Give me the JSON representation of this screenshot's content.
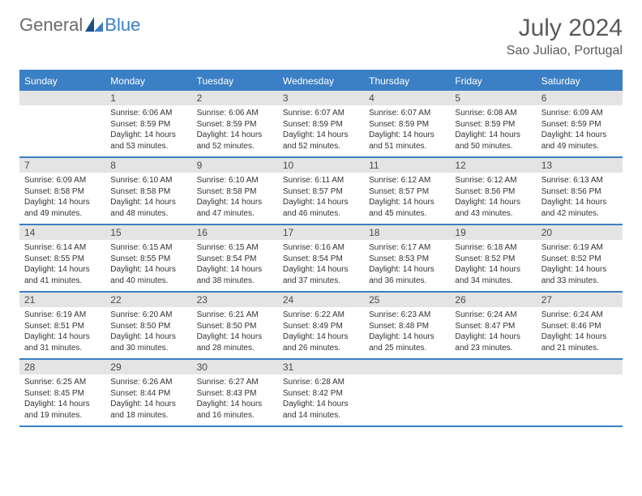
{
  "brand": {
    "part1": "General",
    "part2": "Blue"
  },
  "title": "July 2024",
  "location": "Sao Juliao, Portugal",
  "colors": {
    "accent": "#3b7fc4",
    "header_bg": "#3b7fc4",
    "daynum_bg": "#e4e4e4",
    "text": "#333333",
    "title_text": "#5a5a5a",
    "background": "#ffffff"
  },
  "weekdays": [
    "Sunday",
    "Monday",
    "Tuesday",
    "Wednesday",
    "Thursday",
    "Friday",
    "Saturday"
  ],
  "weeks": [
    [
      {
        "day": "",
        "lines": [
          "",
          "",
          "",
          ""
        ]
      },
      {
        "day": "1",
        "lines": [
          "Sunrise: 6:06 AM",
          "Sunset: 8:59 PM",
          "Daylight: 14 hours",
          "and 53 minutes."
        ]
      },
      {
        "day": "2",
        "lines": [
          "Sunrise: 6:06 AM",
          "Sunset: 8:59 PM",
          "Daylight: 14 hours",
          "and 52 minutes."
        ]
      },
      {
        "day": "3",
        "lines": [
          "Sunrise: 6:07 AM",
          "Sunset: 8:59 PM",
          "Daylight: 14 hours",
          "and 52 minutes."
        ]
      },
      {
        "day": "4",
        "lines": [
          "Sunrise: 6:07 AM",
          "Sunset: 8:59 PM",
          "Daylight: 14 hours",
          "and 51 minutes."
        ]
      },
      {
        "day": "5",
        "lines": [
          "Sunrise: 6:08 AM",
          "Sunset: 8:59 PM",
          "Daylight: 14 hours",
          "and 50 minutes."
        ]
      },
      {
        "day": "6",
        "lines": [
          "Sunrise: 6:09 AM",
          "Sunset: 8:59 PM",
          "Daylight: 14 hours",
          "and 49 minutes."
        ]
      }
    ],
    [
      {
        "day": "7",
        "lines": [
          "Sunrise: 6:09 AM",
          "Sunset: 8:58 PM",
          "Daylight: 14 hours",
          "and 49 minutes."
        ]
      },
      {
        "day": "8",
        "lines": [
          "Sunrise: 6:10 AM",
          "Sunset: 8:58 PM",
          "Daylight: 14 hours",
          "and 48 minutes."
        ]
      },
      {
        "day": "9",
        "lines": [
          "Sunrise: 6:10 AM",
          "Sunset: 8:58 PM",
          "Daylight: 14 hours",
          "and 47 minutes."
        ]
      },
      {
        "day": "10",
        "lines": [
          "Sunrise: 6:11 AM",
          "Sunset: 8:57 PM",
          "Daylight: 14 hours",
          "and 46 minutes."
        ]
      },
      {
        "day": "11",
        "lines": [
          "Sunrise: 6:12 AM",
          "Sunset: 8:57 PM",
          "Daylight: 14 hours",
          "and 45 minutes."
        ]
      },
      {
        "day": "12",
        "lines": [
          "Sunrise: 6:12 AM",
          "Sunset: 8:56 PM",
          "Daylight: 14 hours",
          "and 43 minutes."
        ]
      },
      {
        "day": "13",
        "lines": [
          "Sunrise: 6:13 AM",
          "Sunset: 8:56 PM",
          "Daylight: 14 hours",
          "and 42 minutes."
        ]
      }
    ],
    [
      {
        "day": "14",
        "lines": [
          "Sunrise: 6:14 AM",
          "Sunset: 8:55 PM",
          "Daylight: 14 hours",
          "and 41 minutes."
        ]
      },
      {
        "day": "15",
        "lines": [
          "Sunrise: 6:15 AM",
          "Sunset: 8:55 PM",
          "Daylight: 14 hours",
          "and 40 minutes."
        ]
      },
      {
        "day": "16",
        "lines": [
          "Sunrise: 6:15 AM",
          "Sunset: 8:54 PM",
          "Daylight: 14 hours",
          "and 38 minutes."
        ]
      },
      {
        "day": "17",
        "lines": [
          "Sunrise: 6:16 AM",
          "Sunset: 8:54 PM",
          "Daylight: 14 hours",
          "and 37 minutes."
        ]
      },
      {
        "day": "18",
        "lines": [
          "Sunrise: 6:17 AM",
          "Sunset: 8:53 PM",
          "Daylight: 14 hours",
          "and 36 minutes."
        ]
      },
      {
        "day": "19",
        "lines": [
          "Sunrise: 6:18 AM",
          "Sunset: 8:52 PM",
          "Daylight: 14 hours",
          "and 34 minutes."
        ]
      },
      {
        "day": "20",
        "lines": [
          "Sunrise: 6:19 AM",
          "Sunset: 8:52 PM",
          "Daylight: 14 hours",
          "and 33 minutes."
        ]
      }
    ],
    [
      {
        "day": "21",
        "lines": [
          "Sunrise: 6:19 AM",
          "Sunset: 8:51 PM",
          "Daylight: 14 hours",
          "and 31 minutes."
        ]
      },
      {
        "day": "22",
        "lines": [
          "Sunrise: 6:20 AM",
          "Sunset: 8:50 PM",
          "Daylight: 14 hours",
          "and 30 minutes."
        ]
      },
      {
        "day": "23",
        "lines": [
          "Sunrise: 6:21 AM",
          "Sunset: 8:50 PM",
          "Daylight: 14 hours",
          "and 28 minutes."
        ]
      },
      {
        "day": "24",
        "lines": [
          "Sunrise: 6:22 AM",
          "Sunset: 8:49 PM",
          "Daylight: 14 hours",
          "and 26 minutes."
        ]
      },
      {
        "day": "25",
        "lines": [
          "Sunrise: 6:23 AM",
          "Sunset: 8:48 PM",
          "Daylight: 14 hours",
          "and 25 minutes."
        ]
      },
      {
        "day": "26",
        "lines": [
          "Sunrise: 6:24 AM",
          "Sunset: 8:47 PM",
          "Daylight: 14 hours",
          "and 23 minutes."
        ]
      },
      {
        "day": "27",
        "lines": [
          "Sunrise: 6:24 AM",
          "Sunset: 8:46 PM",
          "Daylight: 14 hours",
          "and 21 minutes."
        ]
      }
    ],
    [
      {
        "day": "28",
        "lines": [
          "Sunrise: 6:25 AM",
          "Sunset: 8:45 PM",
          "Daylight: 14 hours",
          "and 19 minutes."
        ]
      },
      {
        "day": "29",
        "lines": [
          "Sunrise: 6:26 AM",
          "Sunset: 8:44 PM",
          "Daylight: 14 hours",
          "and 18 minutes."
        ]
      },
      {
        "day": "30",
        "lines": [
          "Sunrise: 6:27 AM",
          "Sunset: 8:43 PM",
          "Daylight: 14 hours",
          "and 16 minutes."
        ]
      },
      {
        "day": "31",
        "lines": [
          "Sunrise: 6:28 AM",
          "Sunset: 8:42 PM",
          "Daylight: 14 hours",
          "and 14 minutes."
        ]
      },
      {
        "day": "",
        "lines": [
          "",
          "",
          "",
          ""
        ]
      },
      {
        "day": "",
        "lines": [
          "",
          "",
          "",
          ""
        ]
      },
      {
        "day": "",
        "lines": [
          "",
          "",
          "",
          ""
        ]
      }
    ]
  ]
}
